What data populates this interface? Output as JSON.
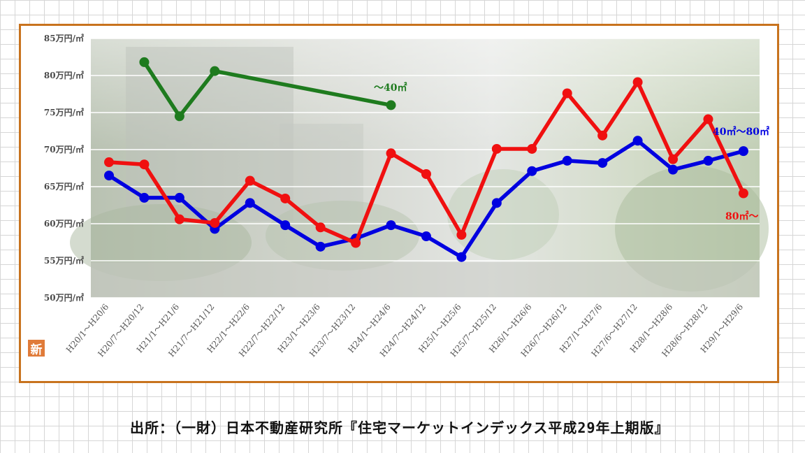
{
  "badge": "新",
  "source_text": "出所：（一財）日本不動産研究所『住宅マーケットインデックス平成29年上期版』",
  "chart_data": {
    "type": "line",
    "title": "",
    "xlabel": "",
    "ylabel": "",
    "ylim": [
      50,
      85
    ],
    "yticks": [
      50,
      55,
      60,
      65,
      70,
      75,
      80,
      85
    ],
    "ytick_labels": [
      "50万円/㎡",
      "55万円/㎡",
      "60万円/㎡",
      "65万円/㎡",
      "70万円/㎡",
      "75万円/㎡",
      "80万円/㎡",
      "85万円/㎡"
    ],
    "grid": true,
    "categories": [
      "H20/1〜H20/6",
      "H20/7〜H20/12",
      "H21/1〜H21/6",
      "H21/7〜H21/12",
      "H22/1〜H22/6",
      "H22/7〜H22/12",
      "H23/1〜H23/6",
      "H23/7〜H23/12",
      "H24/1〜H24/6",
      "H24/7〜H24/12",
      "H25/1〜H25/6",
      "H25/7〜H25/12",
      "H26/1〜H26/6",
      "H26/7〜H26/12",
      "H27/1〜H27/6",
      "H27/6〜H27/12",
      "H28/1〜H28/6",
      "H28/6〜H28/12",
      "H29/1〜H29/6"
    ],
    "series": [
      {
        "name": "〜40㎡",
        "color": "#1e7b1e",
        "values": [
          null,
          81.8,
          74.5,
          80.6,
          null,
          null,
          null,
          null,
          76.0,
          null,
          null,
          null,
          null,
          null,
          null,
          null,
          null,
          null,
          null
        ]
      },
      {
        "name": "40㎡〜80㎡",
        "color": "#0000e0",
        "values": [
          66.5,
          63.5,
          63.5,
          59.3,
          62.8,
          59.8,
          56.9,
          58.0,
          59.8,
          58.3,
          55.5,
          62.8,
          67.1,
          68.5,
          68.2,
          71.2,
          67.3,
          68.5,
          69.8
        ]
      },
      {
        "name": "80㎡〜",
        "color": "#f01010",
        "values": [
          68.3,
          68.0,
          60.6,
          60.1,
          65.8,
          63.4,
          59.5,
          57.4,
          69.5,
          66.7,
          58.5,
          70.1,
          70.1,
          77.6,
          71.9,
          79.1,
          68.7,
          74.1,
          64.1
        ]
      }
    ]
  }
}
